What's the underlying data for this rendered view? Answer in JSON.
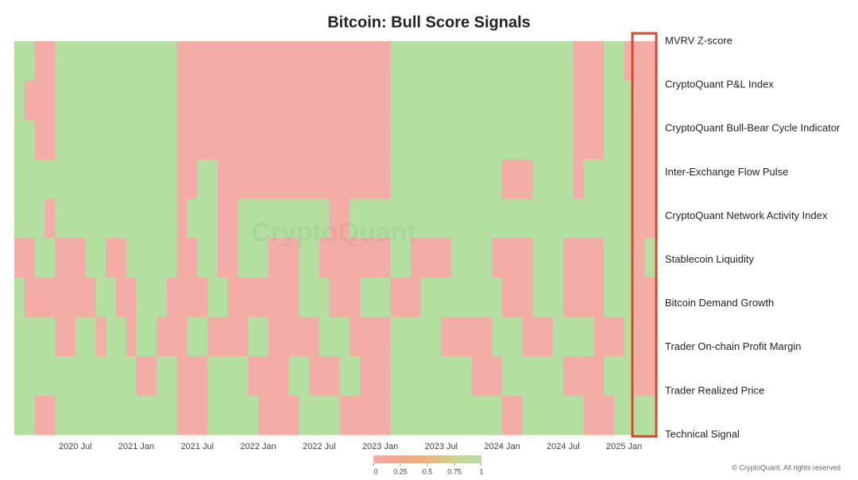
{
  "chart_data": {
    "type": "heatmap",
    "title": "Bitcoin: Bull Score Signals",
    "watermark": "CryptoQuant",
    "copyright": "© CryptoQuant. All rights reserved",
    "rows": [
      "MVRV Z-score",
      "CryptoQuant P&L Index",
      "CryptoQuant Bull-Bear Cycle Indicator",
      "Inter-Exchange Flow Pulse",
      "CryptoQuant Network Activity Index",
      "Stablecoin Liquidity",
      "Bitcoin Demand Growth",
      "Trader On-chain Profit Margin",
      "Trader Realized Price",
      "Technical Signal"
    ],
    "x": [
      "2020 Jan",
      "2020 Feb",
      "2020 Mar",
      "2020 Apr",
      "2020 May",
      "2020 Jun",
      "2020 Jul",
      "2020 Aug",
      "2020 Sep",
      "2020 Oct",
      "2020 Nov",
      "2020 Dec",
      "2021 Jan",
      "2021 Feb",
      "2021 Mar",
      "2021 Apr",
      "2021 May",
      "2021 Jun",
      "2021 Jul",
      "2021 Aug",
      "2021 Sep",
      "2021 Oct",
      "2021 Nov",
      "2021 Dec",
      "2022 Jan",
      "2022 Feb",
      "2022 Mar",
      "2022 Apr",
      "2022 May",
      "2022 Jun",
      "2022 Jul",
      "2022 Aug",
      "2022 Sep",
      "2022 Oct",
      "2022 Nov",
      "2022 Dec",
      "2023 Jan",
      "2023 Feb",
      "2023 Mar",
      "2023 Apr",
      "2023 May",
      "2023 Jun",
      "2023 Jul",
      "2023 Aug",
      "2023 Sep",
      "2023 Oct",
      "2023 Nov",
      "2023 Dec",
      "2024 Jan",
      "2024 Feb",
      "2024 Mar",
      "2024 Apr",
      "2024 May",
      "2024 Jun",
      "2024 Jul",
      "2024 Aug",
      "2024 Sep",
      "2024 Oct",
      "2024 Nov",
      "2024 Dec",
      "2025 Jan",
      "2025 Feb",
      "2025 Mar"
    ],
    "xticks": [
      "2020 Jul",
      "2021 Jan",
      "2021 Jul",
      "2022 Jan",
      "2022 Jul",
      "2023 Jan",
      "2023 Jul",
      "2024 Jan",
      "2024 Jul",
      "2025 Jan"
    ],
    "values": [
      [
        1,
        1,
        0,
        0,
        1,
        1,
        1,
        1,
        1,
        1,
        1,
        1,
        1,
        1,
        1,
        1,
        0,
        0,
        0,
        0,
        0,
        0,
        0,
        0,
        0,
        0,
        0,
        0,
        0,
        0,
        0,
        0,
        0,
        0,
        0,
        0,
        0,
        1,
        1,
        1,
        1,
        1,
        1,
        1,
        1,
        1,
        1,
        1,
        1,
        1,
        1,
        1,
        1,
        1,
        1,
        0,
        0,
        0,
        1,
        1,
        0,
        0,
        0
      ],
      [
        1,
        0,
        0,
        0,
        1,
        1,
        1,
        1,
        1,
        1,
        1,
        1,
        1,
        1,
        1,
        1,
        0,
        0,
        0,
        0,
        0,
        0,
        0,
        0,
        0,
        0,
        0,
        0,
        0,
        0,
        0,
        0,
        0,
        0,
        0,
        0,
        0,
        1,
        1,
        1,
        1,
        1,
        1,
        1,
        1,
        1,
        1,
        1,
        1,
        1,
        1,
        1,
        1,
        1,
        1,
        0,
        0,
        0,
        1,
        1,
        1,
        0,
        0
      ],
      [
        1,
        1,
        0,
        0,
        1,
        1,
        1,
        1,
        1,
        1,
        1,
        1,
        1,
        1,
        1,
        1,
        0,
        0,
        0,
        0,
        0,
        0,
        0,
        0,
        0,
        0,
        0,
        0,
        0,
        0,
        0,
        0,
        0,
        0,
        0,
        0,
        0,
        1,
        1,
        1,
        1,
        1,
        1,
        1,
        1,
        1,
        1,
        1,
        1,
        1,
        1,
        1,
        1,
        1,
        1,
        0,
        0,
        0,
        1,
        1,
        1,
        0,
        0
      ],
      [
        1,
        1,
        1,
        1,
        1,
        1,
        1,
        1,
        1,
        1,
        1,
        1,
        1,
        1,
        1,
        1,
        0,
        0,
        1,
        1,
        0,
        0,
        0,
        0,
        0,
        0,
        0,
        0,
        0,
        0,
        0,
        0,
        0,
        0,
        0,
        0,
        0,
        1,
        1,
        1,
        1,
        1,
        1,
        1,
        1,
        1,
        1,
        1,
        0,
        0,
        0,
        1,
        1,
        1,
        1,
        0,
        1,
        1,
        1,
        1,
        1,
        0,
        0
      ],
      [
        1,
        1,
        1,
        0,
        1,
        1,
        1,
        1,
        1,
        1,
        1,
        1,
        1,
        1,
        1,
        1,
        0,
        1,
        1,
        1,
        0,
        0,
        1,
        1,
        1,
        1,
        1,
        1,
        1,
        1,
        1,
        0,
        0,
        1,
        1,
        1,
        1,
        1,
        1,
        1,
        1,
        1,
        1,
        1,
        1,
        1,
        1,
        1,
        1,
        1,
        1,
        1,
        1,
        1,
        1,
        1,
        1,
        1,
        1,
        1,
        1,
        0,
        0
      ],
      [
        0,
        0,
        1,
        1,
        0,
        0,
        0,
        1,
        1,
        0,
        0,
        1,
        1,
        1,
        1,
        1,
        0,
        0,
        1,
        1,
        0,
        0,
        1,
        1,
        1,
        0,
        0,
        0,
        1,
        1,
        0,
        0,
        0,
        0,
        0,
        0,
        0,
        1,
        1,
        0,
        0,
        0,
        0,
        1,
        1,
        1,
        1,
        0,
        0,
        0,
        0,
        1,
        1,
        1,
        0,
        0,
        0,
        0,
        1,
        1,
        1,
        0,
        1
      ],
      [
        1,
        0,
        0,
        0,
        0,
        0,
        0,
        0,
        1,
        1,
        0,
        0,
        1,
        1,
        1,
        0,
        0,
        0,
        0,
        1,
        1,
        0,
        0,
        0,
        0,
        0,
        0,
        0,
        1,
        1,
        1,
        0,
        0,
        0,
        1,
        1,
        1,
        0,
        0,
        0,
        1,
        1,
        1,
        1,
        1,
        1,
        1,
        1,
        0,
        0,
        0,
        1,
        1,
        1,
        0,
        0,
        0,
        0,
        1,
        1,
        1,
        0,
        0
      ],
      [
        1,
        1,
        1,
        1,
        0,
        0,
        1,
        1,
        0,
        1,
        1,
        0,
        1,
        1,
        0,
        0,
        0,
        1,
        1,
        0,
        0,
        0,
        0,
        1,
        1,
        0,
        0,
        0,
        0,
        0,
        1,
        1,
        1,
        0,
        0,
        0,
        0,
        1,
        1,
        1,
        1,
        1,
        0,
        0,
        0,
        0,
        0,
        1,
        1,
        1,
        0,
        0,
        0,
        1,
        1,
        1,
        1,
        0,
        0,
        0,
        1,
        0,
        0
      ],
      [
        1,
        1,
        1,
        1,
        1,
        1,
        1,
        1,
        1,
        1,
        1,
        1,
        0,
        0,
        1,
        1,
        0,
        0,
        0,
        1,
        1,
        1,
        1,
        0,
        0,
        0,
        0,
        1,
        1,
        0,
        0,
        0,
        1,
        1,
        0,
        0,
        0,
        1,
        1,
        1,
        1,
        1,
        1,
        1,
        1,
        0,
        0,
        0,
        1,
        1,
        1,
        1,
        1,
        1,
        0,
        0,
        0,
        0,
        1,
        1,
        1,
        0,
        0
      ],
      [
        1,
        1,
        0,
        0,
        1,
        1,
        1,
        1,
        1,
        1,
        1,
        1,
        1,
        1,
        1,
        1,
        0,
        0,
        0,
        1,
        1,
        1,
        1,
        1,
        0,
        0,
        0,
        0,
        1,
        1,
        1,
        1,
        0,
        0,
        0,
        0,
        0,
        1,
        1,
        1,
        1,
        1,
        1,
        1,
        1,
        1,
        1,
        1,
        0,
        0,
        1,
        1,
        1,
        1,
        1,
        1,
        0,
        0,
        0,
        1,
        1,
        1,
        1
      ]
    ],
    "colorscale": [
      [
        0,
        "#f4aca6"
      ],
      [
        0.25,
        "#f0a98a"
      ],
      [
        0.5,
        "#ecb27f"
      ],
      [
        0.75,
        "#cfd494"
      ],
      [
        1,
        "#b3dfa1"
      ]
    ],
    "colorbar_ticks": [
      0,
      0.25,
      0.5,
      0.75,
      1
    ]
  }
}
